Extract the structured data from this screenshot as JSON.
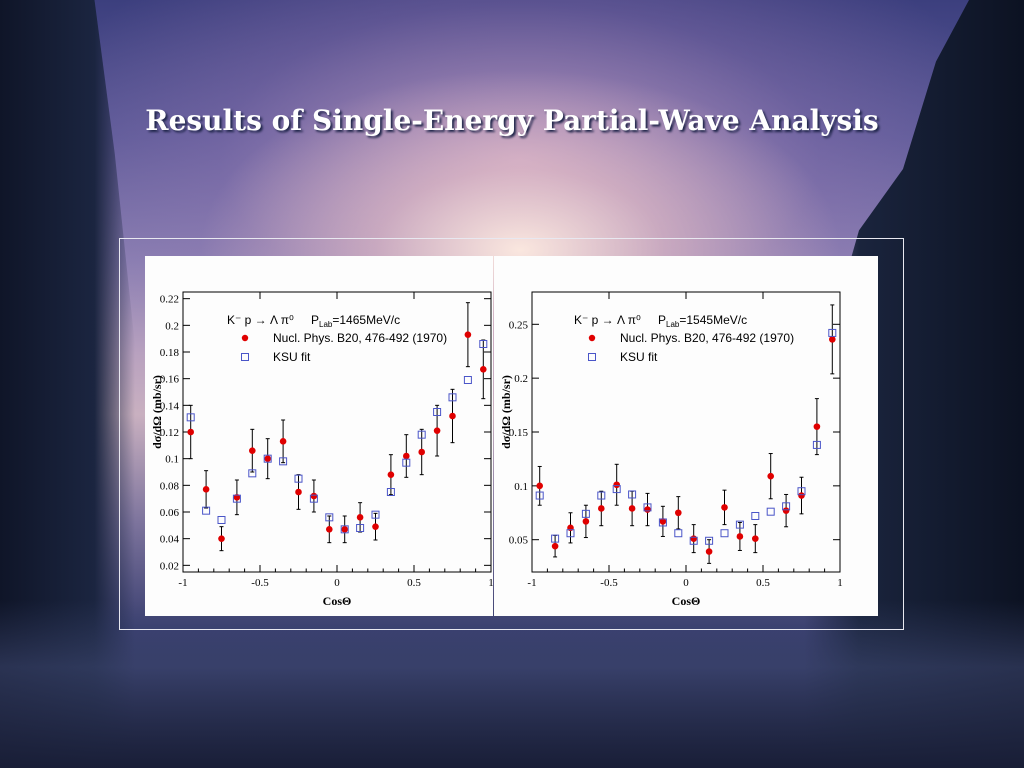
{
  "slide": {
    "title": "Results of Single-Energy Partial-Wave Analysis"
  },
  "chart_data": [
    {
      "type": "scatter",
      "title": "",
      "reaction": "K⁻ p → Λ π⁰",
      "plab_label": "P",
      "plab_sub": "Lab",
      "plab_value": "=1465MeV/c",
      "xlabel": "CosΘ",
      "ylabel": "dσ/dΩ (mb/sr)",
      "xlim": [
        -1,
        1
      ],
      "ylim": [
        0.015,
        0.225
      ],
      "xticks": [
        -1,
        -0.5,
        0,
        0.5,
        1
      ],
      "xtick_labels": [
        "-1",
        "-0.5",
        "0",
        "0.5",
        "1"
      ],
      "yticks": [
        0.02,
        0.04,
        0.06,
        0.08,
        0.1,
        0.12,
        0.14,
        0.16,
        0.18,
        0.2,
        0.22
      ],
      "ytick_labels": [
        "0.02",
        "0.04",
        "0.06",
        "0.08",
        "0.1",
        "0.12",
        "0.14",
        "0.16",
        "0.18",
        "0.2",
        "0.22"
      ],
      "grid": false,
      "legend_position": "top-center",
      "series": [
        {
          "name": "Nucl. Phys. B20, 476-492 (1970)",
          "marker": "filled-circle",
          "color": "#e00000",
          "points": [
            {
              "x": -0.95,
              "y": 0.12,
              "err": 0.02
            },
            {
              "x": -0.85,
              "y": 0.077,
              "err": 0.014
            },
            {
              "x": -0.75,
              "y": 0.04,
              "err": 0.009
            },
            {
              "x": -0.65,
              "y": 0.071,
              "err": 0.013
            },
            {
              "x": -0.55,
              "y": 0.106,
              "err": 0.016
            },
            {
              "x": -0.45,
              "y": 0.1,
              "err": 0.015
            },
            {
              "x": -0.35,
              "y": 0.113,
              "err": 0.016
            },
            {
              "x": -0.25,
              "y": 0.075,
              "err": 0.013
            },
            {
              "x": -0.15,
              "y": 0.072,
              "err": 0.012
            },
            {
              "x": -0.05,
              "y": 0.047,
              "err": 0.01
            },
            {
              "x": 0.05,
              "y": 0.047,
              "err": 0.01
            },
            {
              "x": 0.15,
              "y": 0.056,
              "err": 0.011
            },
            {
              "x": 0.25,
              "y": 0.049,
              "err": 0.01
            },
            {
              "x": 0.35,
              "y": 0.088,
              "err": 0.015
            },
            {
              "x": 0.45,
              "y": 0.102,
              "err": 0.016
            },
            {
              "x": 0.55,
              "y": 0.105,
              "err": 0.017
            },
            {
              "x": 0.65,
              "y": 0.121,
              "err": 0.019
            },
            {
              "x": 0.75,
              "y": 0.132,
              "err": 0.02
            },
            {
              "x": 0.85,
              "y": 0.193,
              "err": 0.024
            },
            {
              "x": 0.95,
              "y": 0.167,
              "err": 0.022
            }
          ]
        },
        {
          "name": "KSU fit",
          "marker": "open-square",
          "color": "#4a55c8",
          "points": [
            {
              "x": -0.95,
              "y": 0.131
            },
            {
              "x": -0.85,
              "y": 0.061
            },
            {
              "x": -0.75,
              "y": 0.054
            },
            {
              "x": -0.65,
              "y": 0.07
            },
            {
              "x": -0.55,
              "y": 0.089
            },
            {
              "x": -0.45,
              "y": 0.1
            },
            {
              "x": -0.35,
              "y": 0.098
            },
            {
              "x": -0.25,
              "y": 0.085
            },
            {
              "x": -0.15,
              "y": 0.07
            },
            {
              "x": -0.05,
              "y": 0.056
            },
            {
              "x": 0.05,
              "y": 0.047
            },
            {
              "x": 0.15,
              "y": 0.048
            },
            {
              "x": 0.25,
              "y": 0.058
            },
            {
              "x": 0.35,
              "y": 0.075
            },
            {
              "x": 0.45,
              "y": 0.097
            },
            {
              "x": 0.55,
              "y": 0.118
            },
            {
              "x": 0.65,
              "y": 0.135
            },
            {
              "x": 0.75,
              "y": 0.146
            },
            {
              "x": 0.85,
              "y": 0.159
            },
            {
              "x": 0.95,
              "y": 0.186
            }
          ]
        }
      ]
    },
    {
      "type": "scatter",
      "title": "",
      "reaction": "K⁻ p → Λ π⁰",
      "plab_label": "P",
      "plab_sub": "Lab",
      "plab_value": "=1545MeV/c",
      "xlabel": "CosΘ",
      "ylabel": "dσ/dΩ (mb/sr)",
      "xlim": [
        -1,
        1
      ],
      "ylim": [
        0.02,
        0.28
      ],
      "xticks": [
        -1,
        -0.5,
        0,
        0.5,
        1
      ],
      "xtick_labels": [
        "-1",
        "-0.5",
        "0",
        "0.5",
        "1"
      ],
      "yticks": [
        0.05,
        0.1,
        0.15,
        0.2,
        0.25
      ],
      "ytick_labels": [
        "0.05",
        "0.1",
        "0.15",
        "0.2",
        "0.25"
      ],
      "grid": false,
      "legend_position": "top-center",
      "series": [
        {
          "name": "Nucl. Phys. B20, 476-492 (1970)",
          "marker": "filled-circle",
          "color": "#e00000",
          "points": [
            {
              "x": -0.95,
              "y": 0.1,
              "err": 0.018
            },
            {
              "x": -0.85,
              "y": 0.044,
              "err": 0.01
            },
            {
              "x": -0.75,
              "y": 0.061,
              "err": 0.014
            },
            {
              "x": -0.65,
              "y": 0.067,
              "err": 0.015
            },
            {
              "x": -0.55,
              "y": 0.079,
              "err": 0.016
            },
            {
              "x": -0.45,
              "y": 0.101,
              "err": 0.019
            },
            {
              "x": -0.35,
              "y": 0.079,
              "err": 0.016
            },
            {
              "x": -0.25,
              "y": 0.078,
              "err": 0.015
            },
            {
              "x": -0.15,
              "y": 0.067,
              "err": 0.014
            },
            {
              "x": -0.05,
              "y": 0.075,
              "err": 0.015
            },
            {
              "x": 0.05,
              "y": 0.051,
              "err": 0.013
            },
            {
              "x": 0.15,
              "y": 0.039,
              "err": 0.011
            },
            {
              "x": 0.25,
              "y": 0.08,
              "err": 0.016
            },
            {
              "x": 0.35,
              "y": 0.053,
              "err": 0.013
            },
            {
              "x": 0.45,
              "y": 0.051,
              "err": 0.013
            },
            {
              "x": 0.55,
              "y": 0.109,
              "err": 0.021
            },
            {
              "x": 0.65,
              "y": 0.077,
              "err": 0.015
            },
            {
              "x": 0.75,
              "y": 0.091,
              "err": 0.017
            },
            {
              "x": 0.85,
              "y": 0.155,
              "err": 0.026
            },
            {
              "x": 0.95,
              "y": 0.236,
              "err": 0.032
            }
          ]
        },
        {
          "name": "KSU fit",
          "marker": "open-square",
          "color": "#4a55c8",
          "points": [
            {
              "x": -0.95,
              "y": 0.091
            },
            {
              "x": -0.85,
              "y": 0.051
            },
            {
              "x": -0.75,
              "y": 0.056
            },
            {
              "x": -0.65,
              "y": 0.074
            },
            {
              "x": -0.55,
              "y": 0.091
            },
            {
              "x": -0.45,
              "y": 0.097
            },
            {
              "x": -0.35,
              "y": 0.092
            },
            {
              "x": -0.25,
              "y": 0.08
            },
            {
              "x": -0.15,
              "y": 0.066
            },
            {
              "x": -0.05,
              "y": 0.056
            },
            {
              "x": 0.05,
              "y": 0.049
            },
            {
              "x": 0.15,
              "y": 0.049
            },
            {
              "x": 0.25,
              "y": 0.056
            },
            {
              "x": 0.35,
              "y": 0.064
            },
            {
              "x": 0.45,
              "y": 0.072
            },
            {
              "x": 0.55,
              "y": 0.076
            },
            {
              "x": 0.65,
              "y": 0.081
            },
            {
              "x": 0.75,
              "y": 0.095
            },
            {
              "x": 0.85,
              "y": 0.138
            },
            {
              "x": 0.95,
              "y": 0.242
            }
          ]
        }
      ]
    }
  ]
}
